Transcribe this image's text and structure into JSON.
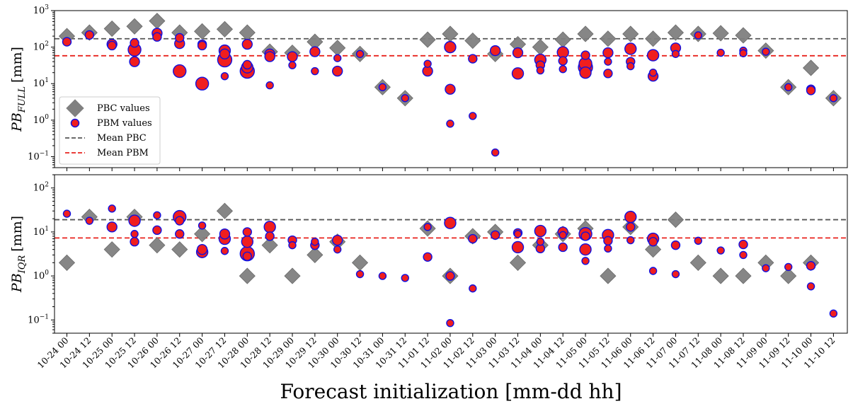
{
  "chart_data": [
    {
      "type": "scatter",
      "panel": "top",
      "ylabel_main": "PB",
      "ylabel_sub": "FULL",
      "ylabel_unit": "[mm]",
      "yscale": "log",
      "ylim": [
        0.05,
        1000
      ],
      "yticks": [
        {
          "v": 0.1,
          "base": "10",
          "exp": "−1"
        },
        {
          "v": 1,
          "base": "10",
          "exp": "0"
        },
        {
          "v": 10,
          "base": "10",
          "exp": "1"
        },
        {
          "v": 100,
          "base": "10",
          "exp": "2"
        },
        {
          "v": 1000,
          "base": "10",
          "exp": "3"
        }
      ],
      "grid": false,
      "legend_position": "center-left",
      "legend": [
        {
          "label": "PBC values",
          "kind": "diamond"
        },
        {
          "label": "PBM values",
          "kind": "circle"
        },
        {
          "label": "Mean PBC",
          "kind": "dash-gray"
        },
        {
          "label": "Mean PBM",
          "kind": "dash-red"
        }
      ],
      "mean_pbc": 170,
      "mean_pbm": 58,
      "pbc": [
        {
          "x": 0,
          "y": 200
        },
        {
          "x": 1,
          "y": 250
        },
        {
          "x": 2,
          "y": 320
        },
        {
          "x": 3,
          "y": 370
        },
        {
          "x": 4,
          "y": 520
        },
        {
          "x": 5,
          "y": 250
        },
        {
          "x": 6,
          "y": 270
        },
        {
          "x": 7,
          "y": 310
        },
        {
          "x": 8,
          "y": 250
        },
        {
          "x": 9,
          "y": 75
        },
        {
          "x": 10,
          "y": 70
        },
        {
          "x": 11,
          "y": 140
        },
        {
          "x": 12,
          "y": 95
        },
        {
          "x": 13,
          "y": 65
        },
        {
          "x": 14,
          "y": 8
        },
        {
          "x": 15,
          "y": 4
        },
        {
          "x": 16,
          "y": 160
        },
        {
          "x": 17,
          "y": 230
        },
        {
          "x": 18,
          "y": 150
        },
        {
          "x": 19,
          "y": 65
        },
        {
          "x": 20,
          "y": 120
        },
        {
          "x": 21,
          "y": 100
        },
        {
          "x": 22,
          "y": 160
        },
        {
          "x": 23,
          "y": 230
        },
        {
          "x": 24,
          "y": 170
        },
        {
          "x": 25,
          "y": 230
        },
        {
          "x": 26,
          "y": 170
        },
        {
          "x": 27,
          "y": 250
        },
        {
          "x": 28,
          "y": 230
        },
        {
          "x": 29,
          "y": 240
        },
        {
          "x": 30,
          "y": 210
        },
        {
          "x": 31,
          "y": 80
        },
        {
          "x": 32,
          "y": 8
        },
        {
          "x": 33,
          "y": 27
        },
        {
          "x": 34,
          "y": 4
        }
      ],
      "pbm": [
        {
          "x": 0,
          "y": 140,
          "s": 6
        },
        {
          "x": 1,
          "y": 215,
          "s": 6
        },
        {
          "x": 2,
          "y": 120,
          "s": 7
        },
        {
          "x": 2,
          "y": 110,
          "s": 6
        },
        {
          "x": 3,
          "y": 130,
          "s": 6
        },
        {
          "x": 3,
          "y": 85,
          "s": 9
        },
        {
          "x": 3,
          "y": 40,
          "s": 7
        },
        {
          "x": 4,
          "y": 240,
          "s": 7
        },
        {
          "x": 4,
          "y": 190,
          "s": 6
        },
        {
          "x": 5,
          "y": 180,
          "s": 6
        },
        {
          "x": 5,
          "y": 125,
          "s": 7
        },
        {
          "x": 5,
          "y": 22,
          "s": 9
        },
        {
          "x": 6,
          "y": 120,
          "s": 6
        },
        {
          "x": 6,
          "y": 110,
          "s": 6
        },
        {
          "x": 6,
          "y": 10,
          "s": 9
        },
        {
          "x": 7,
          "y": 80,
          "s": 8
        },
        {
          "x": 7,
          "y": 65,
          "s": 7
        },
        {
          "x": 7,
          "y": 45,
          "s": 10
        },
        {
          "x": 7,
          "y": 16,
          "s": 5
        },
        {
          "x": 8,
          "y": 120,
          "s": 7
        },
        {
          "x": 8,
          "y": 33,
          "s": 6
        },
        {
          "x": 8,
          "y": 28,
          "s": 8
        },
        {
          "x": 8,
          "y": 22,
          "s": 10
        },
        {
          "x": 9,
          "y": 65,
          "s": 7
        },
        {
          "x": 9,
          "y": 55,
          "s": 7
        },
        {
          "x": 9,
          "y": 9,
          "s": 5
        },
        {
          "x": 10,
          "y": 55,
          "s": 7
        },
        {
          "x": 10,
          "y": 32,
          "s": 5
        },
        {
          "x": 11,
          "y": 75,
          "s": 7
        },
        {
          "x": 11,
          "y": 22,
          "s": 5
        },
        {
          "x": 12,
          "y": 50,
          "s": 5
        },
        {
          "x": 12,
          "y": 22,
          "s": 7
        },
        {
          "x": 13,
          "y": 65,
          "s": 5
        },
        {
          "x": 14,
          "y": 8,
          "s": 5
        },
        {
          "x": 15,
          "y": 4,
          "s": 5
        },
        {
          "x": 16,
          "y": 35,
          "s": 5
        },
        {
          "x": 16,
          "y": 22,
          "s": 7
        },
        {
          "x": 17,
          "y": 100,
          "s": 8
        },
        {
          "x": 17,
          "y": 7,
          "s": 7
        },
        {
          "x": 17,
          "y": 0.8,
          "s": 5
        },
        {
          "x": 18,
          "y": 48,
          "s": 6
        },
        {
          "x": 18,
          "y": 1.3,
          "s": 5
        },
        {
          "x": 19,
          "y": 80,
          "s": 7
        },
        {
          "x": 19,
          "y": 0.13,
          "s": 5
        },
        {
          "x": 20,
          "y": 70,
          "s": 7
        },
        {
          "x": 20,
          "y": 19,
          "s": 8
        },
        {
          "x": 21,
          "y": 45,
          "s": 8
        },
        {
          "x": 21,
          "y": 32,
          "s": 6
        },
        {
          "x": 21,
          "y": 23,
          "s": 5
        },
        {
          "x": 22,
          "y": 72,
          "s": 8
        },
        {
          "x": 22,
          "y": 42,
          "s": 6
        },
        {
          "x": 22,
          "y": 25,
          "s": 5
        },
        {
          "x": 23,
          "y": 60,
          "s": 6
        },
        {
          "x": 23,
          "y": 35,
          "s": 9
        },
        {
          "x": 23,
          "y": 28,
          "s": 10
        },
        {
          "x": 23,
          "y": 20,
          "s": 8
        },
        {
          "x": 24,
          "y": 70,
          "s": 7
        },
        {
          "x": 24,
          "y": 40,
          "s": 5
        },
        {
          "x": 24,
          "y": 19,
          "s": 6
        },
        {
          "x": 25,
          "y": 90,
          "s": 8
        },
        {
          "x": 25,
          "y": 40,
          "s": 6
        },
        {
          "x": 25,
          "y": 30,
          "s": 5
        },
        {
          "x": 26,
          "y": 60,
          "s": 8
        },
        {
          "x": 26,
          "y": 20,
          "s": 5
        },
        {
          "x": 26,
          "y": 16,
          "s": 7
        },
        {
          "x": 27,
          "y": 95,
          "s": 7
        },
        {
          "x": 27,
          "y": 65,
          "s": 5
        },
        {
          "x": 28,
          "y": 210,
          "s": 5
        },
        {
          "x": 29,
          "y": 70,
          "s": 5
        },
        {
          "x": 30,
          "y": 80,
          "s": 5
        },
        {
          "x": 30,
          "y": 68,
          "s": 5
        },
        {
          "x": 31,
          "y": 75,
          "s": 5
        },
        {
          "x": 32,
          "y": 8,
          "s": 5
        },
        {
          "x": 33,
          "y": 7,
          "s": 6
        },
        {
          "x": 33,
          "y": 6.5,
          "s": 6
        },
        {
          "x": 34,
          "y": 4,
          "s": 5
        }
      ]
    },
    {
      "type": "scatter",
      "panel": "bottom",
      "ylabel_main": "PB",
      "ylabel_sub": "IQR",
      "ylabel_unit": "[mm]",
      "yscale": "log",
      "ylim": [
        0.05,
        200
      ],
      "yticks": [
        {
          "v": 0.1,
          "base": "10",
          "exp": "−1"
        },
        {
          "v": 1,
          "base": "10",
          "exp": "0"
        },
        {
          "v": 10,
          "base": "10",
          "exp": "1"
        },
        {
          "v": 100,
          "base": "10",
          "exp": "2"
        }
      ],
      "grid": false,
      "mean_pbc": 19,
      "mean_pbm": 7.3,
      "pbc": [
        {
          "x": 0,
          "y": 2
        },
        {
          "x": 1,
          "y": 22
        },
        {
          "x": 2,
          "y": 4
        },
        {
          "x": 3,
          "y": 22
        },
        {
          "x": 4,
          "y": 5
        },
        {
          "x": 5,
          "y": 4
        },
        {
          "x": 6,
          "y": 9
        },
        {
          "x": 7,
          "y": 30
        },
        {
          "x": 8,
          "y": 1
        },
        {
          "x": 9,
          "y": 5
        },
        {
          "x": 10,
          "y": 1
        },
        {
          "x": 11,
          "y": 3
        },
        {
          "x": 12,
          "y": 6
        },
        {
          "x": 13,
          "y": 2
        },
        {
          "x": 16,
          "y": 12
        },
        {
          "x": 17,
          "y": 1
        },
        {
          "x": 18,
          "y": 8
        },
        {
          "x": 19,
          "y": 10
        },
        {
          "x": 20,
          "y": 2
        },
        {
          "x": 21,
          "y": 5
        },
        {
          "x": 22,
          "y": 9
        },
        {
          "x": 23,
          "y": 12
        },
        {
          "x": 24,
          "y": 1
        },
        {
          "x": 25,
          "y": 13
        },
        {
          "x": 26,
          "y": 4
        },
        {
          "x": 27,
          "y": 19
        },
        {
          "x": 28,
          "y": 2
        },
        {
          "x": 29,
          "y": 1
        },
        {
          "x": 30,
          "y": 1
        },
        {
          "x": 31,
          "y": 2
        },
        {
          "x": 32,
          "y": 1
        },
        {
          "x": 33,
          "y": 2
        }
      ],
      "pbm": [
        {
          "x": 0,
          "y": 26,
          "s": 5
        },
        {
          "x": 1,
          "y": 18,
          "s": 5
        },
        {
          "x": 2,
          "y": 34,
          "s": 5
        },
        {
          "x": 2,
          "y": 13,
          "s": 7
        },
        {
          "x": 3,
          "y": 18,
          "s": 8
        },
        {
          "x": 3,
          "y": 9,
          "s": 5
        },
        {
          "x": 3,
          "y": 6,
          "s": 6
        },
        {
          "x": 4,
          "y": 24,
          "s": 5
        },
        {
          "x": 4,
          "y": 11,
          "s": 6
        },
        {
          "x": 5,
          "y": 22,
          "s": 9
        },
        {
          "x": 5,
          "y": 18,
          "s": 6
        },
        {
          "x": 5,
          "y": 9,
          "s": 6
        },
        {
          "x": 6,
          "y": 14,
          "s": 5
        },
        {
          "x": 6,
          "y": 4,
          "s": 7
        },
        {
          "x": 6,
          "y": 3.5,
          "s": 8
        },
        {
          "x": 7,
          "y": 9,
          "s": 7
        },
        {
          "x": 7,
          "y": 7,
          "s": 8
        },
        {
          "x": 7,
          "y": 3.7,
          "s": 5
        },
        {
          "x": 8,
          "y": 10,
          "s": 6
        },
        {
          "x": 8,
          "y": 6,
          "s": 8
        },
        {
          "x": 8,
          "y": 3.2,
          "s": 10
        },
        {
          "x": 8,
          "y": 2.8,
          "s": 6
        },
        {
          "x": 9,
          "y": 13,
          "s": 8
        },
        {
          "x": 9,
          "y": 8,
          "s": 6
        },
        {
          "x": 10,
          "y": 6.5,
          "s": 6
        },
        {
          "x": 10,
          "y": 5,
          "s": 5
        },
        {
          "x": 11,
          "y": 6,
          "s": 5
        },
        {
          "x": 11,
          "y": 5,
          "s": 6
        },
        {
          "x": 12,
          "y": 6.5,
          "s": 7
        },
        {
          "x": 12,
          "y": 4,
          "s": 5
        },
        {
          "x": 13,
          "y": 1.1,
          "s": 5
        },
        {
          "x": 14,
          "y": 1,
          "s": 5
        },
        {
          "x": 15,
          "y": 0.9,
          "s": 5
        },
        {
          "x": 16,
          "y": 13,
          "s": 5
        },
        {
          "x": 16,
          "y": 2.7,
          "s": 6
        },
        {
          "x": 17,
          "y": 16,
          "s": 8
        },
        {
          "x": 17,
          "y": 1,
          "s": 6
        },
        {
          "x": 17,
          "y": 0.085,
          "s": 5
        },
        {
          "x": 18,
          "y": 7,
          "s": 6
        },
        {
          "x": 18,
          "y": 0.52,
          "s": 5
        },
        {
          "x": 19,
          "y": 8.5,
          "s": 6
        },
        {
          "x": 20,
          "y": 9.5,
          "s": 6
        },
        {
          "x": 20,
          "y": 9,
          "s": 5
        },
        {
          "x": 20,
          "y": 4.5,
          "s": 8
        },
        {
          "x": 21,
          "y": 10.5,
          "s": 8
        },
        {
          "x": 21,
          "y": 6,
          "s": 5
        },
        {
          "x": 21,
          "y": 4.2,
          "s": 6
        },
        {
          "x": 22,
          "y": 10,
          "s": 7
        },
        {
          "x": 22,
          "y": 8.5,
          "s": 5
        },
        {
          "x": 22,
          "y": 4.5,
          "s": 6
        },
        {
          "x": 23,
          "y": 9,
          "s": 9
        },
        {
          "x": 23,
          "y": 8,
          "s": 6
        },
        {
          "x": 23,
          "y": 4,
          "s": 8
        },
        {
          "x": 23,
          "y": 2.2,
          "s": 5
        },
        {
          "x": 24,
          "y": 8.5,
          "s": 8
        },
        {
          "x": 24,
          "y": 6.3,
          "s": 6
        },
        {
          "x": 24,
          "y": 4.2,
          "s": 5
        },
        {
          "x": 25,
          "y": 22,
          "s": 8
        },
        {
          "x": 25,
          "y": 13,
          "s": 6
        },
        {
          "x": 25,
          "y": 6.5,
          "s": 5
        },
        {
          "x": 26,
          "y": 7,
          "s": 8
        },
        {
          "x": 26,
          "y": 6,
          "s": 6
        },
        {
          "x": 26,
          "y": 1.3,
          "s": 5
        },
        {
          "x": 27,
          "y": 5,
          "s": 6
        },
        {
          "x": 27,
          "y": 1.1,
          "s": 5
        },
        {
          "x": 28,
          "y": 6.3,
          "s": 5
        },
        {
          "x": 29,
          "y": 3.8,
          "s": 5
        },
        {
          "x": 30,
          "y": 5.2,
          "s": 6
        },
        {
          "x": 30,
          "y": 3,
          "s": 5
        },
        {
          "x": 31,
          "y": 1.5,
          "s": 5
        },
        {
          "x": 32,
          "y": 1.6,
          "s": 5
        },
        {
          "x": 33,
          "y": 1.7,
          "s": 6
        },
        {
          "x": 33,
          "y": 0.58,
          "s": 5
        },
        {
          "x": 34,
          "y": 0.14,
          "s": 5
        }
      ]
    }
  ],
  "x_categories": [
    "10-24 00",
    "10-24 12",
    "10-25 00",
    "10-25 12",
    "10-26 00",
    "10-26 12",
    "10-27 00",
    "10-27 12",
    "10-28 00",
    "10-28 12",
    "10-29 00",
    "10-29 12",
    "10-30 00",
    "10-30 12",
    "10-31 00",
    "10-31 12",
    "11-01 12",
    "11-02 00",
    "11-02 12",
    "11-03 00",
    "11-03 12",
    "11-04 00",
    "11-04 12",
    "11-05 00",
    "11-05 12",
    "11-06 00",
    "11-06 12",
    "11-07 00",
    "11-07 12",
    "11-08 00",
    "11-08 12",
    "11-09 00",
    "11-09 12",
    "11-10 00",
    "11-10 12"
  ],
  "xlabel": "Forecast initialization [mm-dd hh]",
  "colors": {
    "pbc_fill": "#808080",
    "pbc_mean": "#555555",
    "pbm_fill": "#f01e1e",
    "pbm_edge": "#1010e0",
    "pbm_mean": "#e8231e"
  }
}
